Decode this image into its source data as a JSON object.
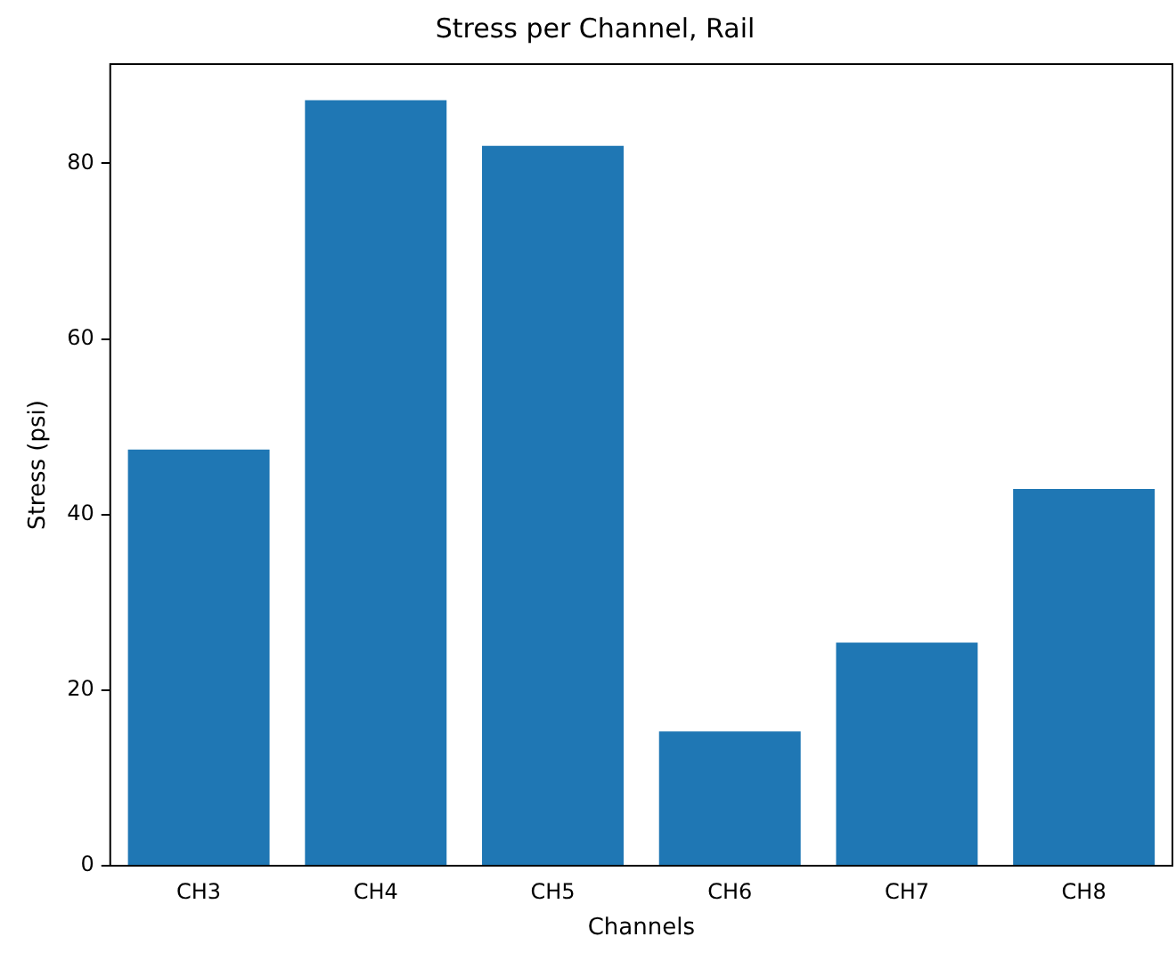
{
  "chart_data": {
    "type": "bar",
    "title": "Stress per Channel, Rail",
    "xlabel": "Channels",
    "ylabel": "Stress (psi)",
    "categories": [
      "CH3",
      "CH4",
      "CH5",
      "CH6",
      "CH7",
      "CH8"
    ],
    "values": [
      47.4,
      87.2,
      82,
      15.3,
      25.4,
      42.9
    ],
    "color": "#1f77b4",
    "ylim": [
      0,
      91.3
    ],
    "yticks": [
      0,
      20,
      40,
      60,
      80
    ],
    "grid": false,
    "legend": false
  }
}
